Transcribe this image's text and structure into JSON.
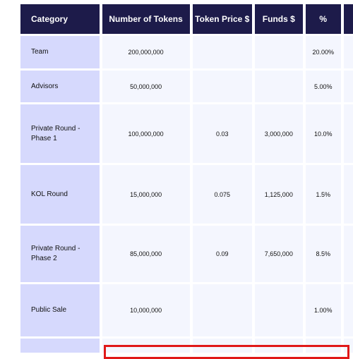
{
  "table": {
    "headers": [
      "Category",
      "Number of Tokens",
      "Token Price $",
      "Funds $",
      "%"
    ],
    "rows": [
      {
        "category": "Team",
        "tokens": "200,000,000",
        "price": "",
        "funds": "",
        "pct": "20.00%"
      },
      {
        "category": "Advisors",
        "tokens": "50,000,000",
        "price": "",
        "funds": "",
        "pct": "5.00%"
      },
      {
        "category": "Private Round - Phase 1",
        "tokens": "100,000,000",
        "price": "0.03",
        "funds": "3,000,000",
        "pct": "10.0%"
      },
      {
        "category": "KOL Round",
        "tokens": "15,000,000",
        "price": "0.075",
        "funds": "1,125,000",
        "pct": "1.5%"
      },
      {
        "category": "Private Round - Phase 2",
        "tokens": "85,000,000",
        "price": "0.09",
        "funds": "7,650,000",
        "pct": "8.5%"
      },
      {
        "category": "Public Sale",
        "tokens": "10,000,000",
        "price": "",
        "funds": "",
        "pct": "1.00%"
      },
      {
        "category": "",
        "tokens": "",
        "price": "",
        "funds": "",
        "pct": ""
      }
    ]
  },
  "colors": {
    "header_bg": "#1d1b4a",
    "category_bg": "#d6d9fd",
    "cell_bg": "#f4f6fe",
    "highlight_border": "#e01818"
  }
}
